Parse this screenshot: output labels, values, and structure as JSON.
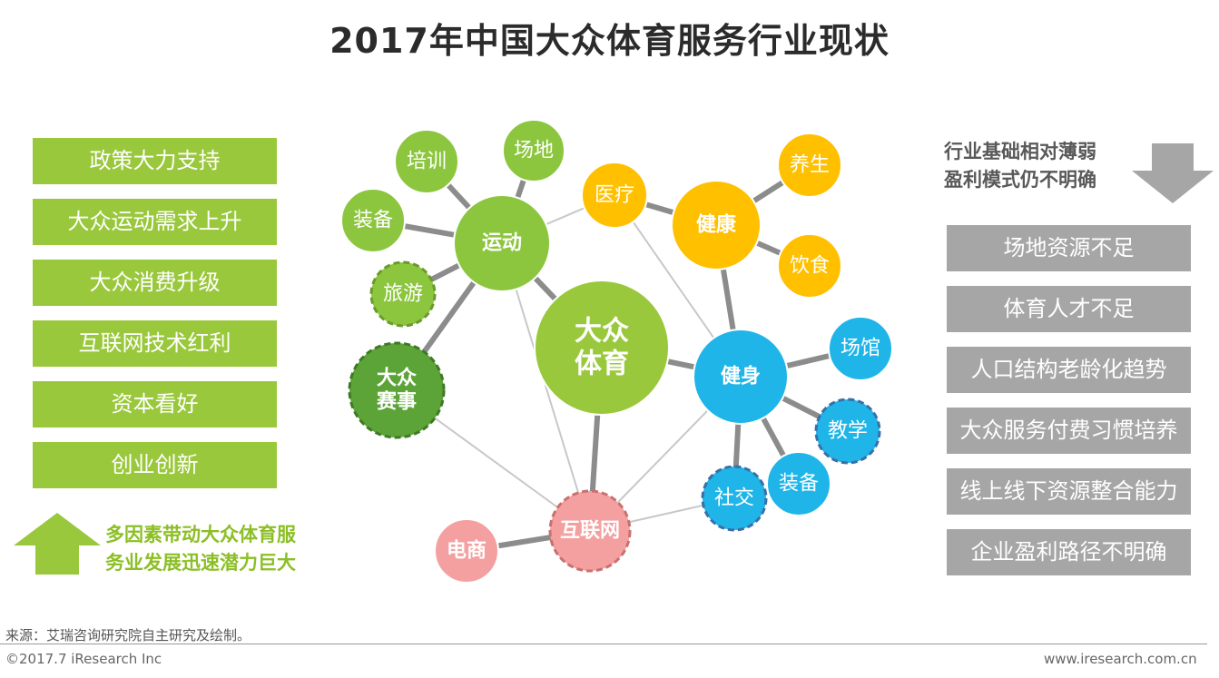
{
  "title": "2017年中国大众体育服务行业现状",
  "left_factors": [
    "政策大力支持",
    "大众运动需求上升",
    "大众消费升级",
    "互联网技术红利",
    "资本看好",
    "创业创新"
  ],
  "left_note": [
    "多因素带动大众体育服",
    "务业发展迅速潜力巨大"
  ],
  "right_note": [
    "行业基础相对薄弱",
    "盈利模式仍不明确"
  ],
  "right_issues": [
    "场地资源不足",
    "体育人才不足",
    "人口结构老龄化趋势",
    "大众服务付费习惯培养",
    "线上线下资源整合能力",
    "企业盈利路径不明确"
  ],
  "network": {
    "nodes": [
      {
        "id": "center",
        "label": [
          "大众",
          "体育"
        ],
        "color": "#9ac83c",
        "style": "solid",
        "bold": true
      },
      {
        "id": "yundong",
        "label": [
          "运动"
        ],
        "color": "#8cc63f",
        "style": "solid",
        "bold": true
      },
      {
        "id": "peixun",
        "label": [
          "培训"
        ],
        "color": "#8cc63f",
        "style": "solid",
        "bold": false
      },
      {
        "id": "changdi",
        "label": [
          "场地"
        ],
        "color": "#8cc63f",
        "style": "solid",
        "bold": false
      },
      {
        "id": "zhuangbei1",
        "label": [
          "装备"
        ],
        "color": "#8cc63f",
        "style": "solid",
        "bold": false
      },
      {
        "id": "lvyou",
        "label": [
          "旅游"
        ],
        "color": "#8cc63f",
        "style": "dashed",
        "bold": false
      },
      {
        "id": "saishi",
        "label": [
          "大众",
          "赛事"
        ],
        "color": "#5da438",
        "style": "dashed",
        "bold": true
      },
      {
        "id": "yiliao",
        "label": [
          "医疗"
        ],
        "color": "#ffc000",
        "style": "solid",
        "bold": false
      },
      {
        "id": "jiankang",
        "label": [
          "健康"
        ],
        "color": "#ffc000",
        "style": "solid",
        "bold": true
      },
      {
        "id": "yangsheng",
        "label": [
          "养生"
        ],
        "color": "#ffc000",
        "style": "solid",
        "bold": false
      },
      {
        "id": "yinshi",
        "label": [
          "饮食"
        ],
        "color": "#ffc000",
        "style": "solid",
        "bold": false
      },
      {
        "id": "jianshen",
        "label": [
          "健身"
        ],
        "color": "#1fb5e8",
        "style": "solid",
        "bold": true
      },
      {
        "id": "changguan",
        "label": [
          "场馆"
        ],
        "color": "#1fb5e8",
        "style": "solid",
        "bold": false
      },
      {
        "id": "jiaoxue",
        "label": [
          "教学"
        ],
        "color": "#1fb5e8",
        "style": "dashed",
        "bold": false
      },
      {
        "id": "zhuangbei2",
        "label": [
          "装备"
        ],
        "color": "#1fb5e8",
        "style": "solid",
        "bold": false
      },
      {
        "id": "shejiao",
        "label": [
          "社交"
        ],
        "color": "#1fb5e8",
        "style": "dashed",
        "bold": false
      },
      {
        "id": "hulianwang",
        "label": [
          "互联网"
        ],
        "color": "#f4a0a0",
        "style": "dashed",
        "bold": true
      },
      {
        "id": "dianshang",
        "label": [
          "电商"
        ],
        "color": "#f4a0a0",
        "style": "solid",
        "bold": true
      }
    ]
  },
  "footer": {
    "source": "来源：艾瑞咨询研究院自主研究及绘制。",
    "copyright": "©2017.7 iResearch Inc",
    "website": "www.iresearch.com.cn"
  }
}
